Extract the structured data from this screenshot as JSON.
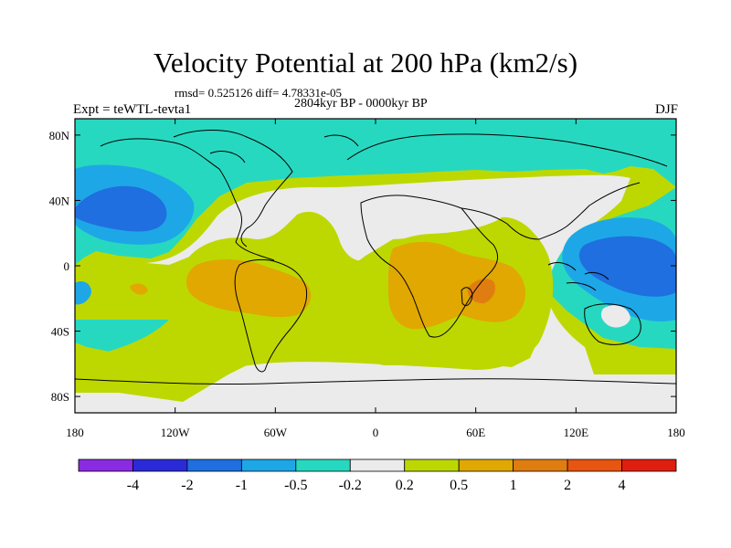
{
  "header": {
    "title": "Velocity Potential at 200 hPa (km2/s)",
    "stats": "rmsd= 0.525126 diff= 4.78331e-05",
    "period": "2804kyr BP - 0000kyr BP",
    "experiment": "Expt = teWTL-tevta1",
    "season": "DJF"
  },
  "axes": {
    "lon_ticks": [
      {
        "value": -180,
        "label": "180"
      },
      {
        "value": -120,
        "label": "120W"
      },
      {
        "value": -60,
        "label": "60W"
      },
      {
        "value": 0,
        "label": "0"
      },
      {
        "value": 60,
        "label": "60E"
      },
      {
        "value": 120,
        "label": "120E"
      },
      {
        "value": 180,
        "label": "180"
      }
    ],
    "lat_ticks": [
      {
        "value": 80,
        "label": "80N"
      },
      {
        "value": 40,
        "label": "40N"
      },
      {
        "value": 0,
        "label": "0"
      },
      {
        "value": -40,
        "label": "40S"
      },
      {
        "value": -80,
        "label": "80S"
      }
    ],
    "lon_range": [
      -180,
      180
    ],
    "lat_range": [
      -90,
      90
    ]
  },
  "colorbar": {
    "colors": [
      "#8a2be2",
      "#2a2ad8",
      "#1f6fe0",
      "#1ea7e6",
      "#27d8c0",
      "#ebebeb",
      "#bdd800",
      "#e0a800",
      "#e07d10",
      "#e85510",
      "#e01e10"
    ],
    "boundaries": [
      "-4",
      "-2",
      "-1",
      "-0.5",
      "-0.2",
      "0.2",
      "0.5",
      "1",
      "2",
      "4"
    ]
  },
  "map_colors": {
    "ocean_background": "#bdd800",
    "coastline": "#000000"
  }
}
